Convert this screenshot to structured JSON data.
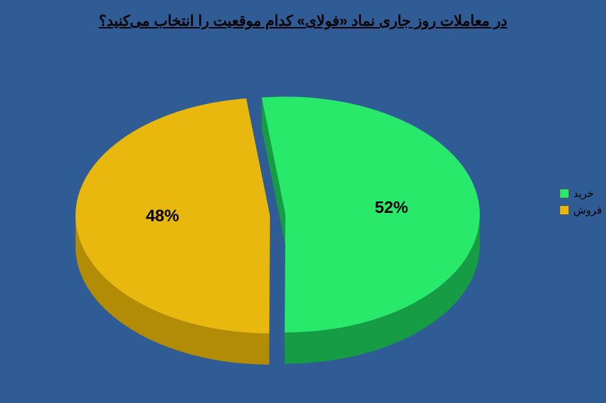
{
  "title": {
    "text": "در معاملات روز جاری نماد «فولای» کدام موقعیت را انتخاب می‌کنید؟",
    "fontsize": 21,
    "color": "#000000"
  },
  "background_color": "#2f5c94",
  "chart": {
    "type": "pie-3d",
    "slices": [
      {
        "label": "خرید",
        "value": 52,
        "display": "52%",
        "color": "#29e96b",
        "side_color": "#169c44"
      },
      {
        "label": "فروش",
        "value": 48,
        "display": "48%",
        "color": "#e8b80e",
        "side_color": "#b38c06"
      }
    ],
    "label_fontsize": 24,
    "legend_fontsize": 15,
    "explode": 0.04
  }
}
